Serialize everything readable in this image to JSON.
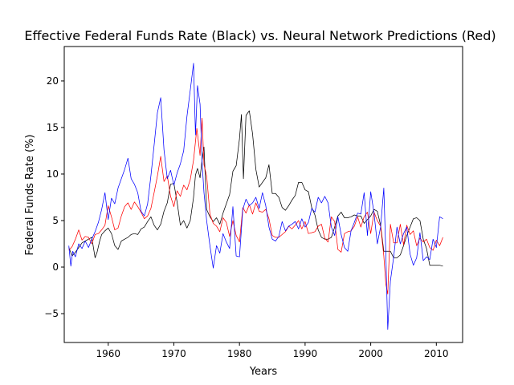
{
  "chart_data": {
    "type": "line",
    "title": "Effective Federal Funds Rate (Black) vs. Neural Network Predictions (Red)",
    "xlabel": "Years",
    "ylabel": "Federal Funds Rate (%)",
    "xlim": [
      1953.3,
      2014.0
    ],
    "ylim": [
      -8.1,
      23.7
    ],
    "xticks": [
      1960,
      1970,
      1980,
      1990,
      2000,
      2010
    ],
    "yticks": [
      -5,
      0,
      5,
      10,
      15,
      20
    ],
    "ytick_labels": [
      "−5",
      "0",
      "5",
      "10",
      "15",
      "20"
    ],
    "grid": false,
    "series": [
      {
        "color": "#000000",
        "x": [
          1954.0,
          1954.5,
          1955.0,
          1955.5,
          1956.0,
          1956.5,
          1957.0,
          1957.5,
          1958.0,
          1958.3,
          1958.7,
          1959.0,
          1959.5,
          1960.0,
          1960.5,
          1961.0,
          1961.5,
          1962.0,
          1962.5,
          1963.0,
          1963.5,
          1964.0,
          1964.5,
          1965.0,
          1965.5,
          1966.0,
          1966.5,
          1967.0,
          1967.5,
          1968.0,
          1968.5,
          1969.0,
          1969.5,
          1970.0,
          1970.5,
          1971.0,
          1971.5,
          1972.0,
          1972.5,
          1973.0,
          1973.3,
          1973.6,
          1974.0,
          1974.3,
          1974.6,
          1975.0,
          1975.5,
          1976.0,
          1976.5,
          1977.0,
          1977.5,
          1978.0,
          1978.5,
          1979.0,
          1979.5,
          1980.0,
          1980.3,
          1980.6,
          1981.0,
          1981.5,
          1982.0,
          1982.5,
          1983.0,
          1983.5,
          1984.0,
          1984.5,
          1985.0,
          1985.5,
          1986.0,
          1986.5,
          1987.0,
          1987.5,
          1988.0,
          1988.5,
          1989.0,
          1989.5,
          1990.0,
          1990.5,
          1991.0,
          1991.5,
          1992.0,
          1992.5,
          1993.0,
          1993.5,
          1994.0,
          1994.5,
          1995.0,
          1995.5,
          1996.0,
          1996.5,
          1997.0,
          1997.5,
          1998.0,
          1998.5,
          1999.0,
          1999.5,
          2000.0,
          2000.5,
          2001.0,
          2001.5,
          2002.0,
          2002.5,
          2003.0,
          2003.5,
          2004.0,
          2004.5,
          2005.0,
          2005.5,
          2006.0,
          2006.5,
          2007.0,
          2007.5,
          2008.0,
          2008.5,
          2009.0,
          2009.5,
          2010.0,
          2010.5,
          2011.0
        ],
        "y": [
          2.1,
          1.2,
          1.6,
          2.1,
          2.6,
          2.8,
          3.0,
          3.2,
          1.0,
          1.6,
          2.8,
          3.5,
          3.9,
          4.2,
          3.6,
          2.3,
          1.9,
          2.8,
          3.0,
          3.2,
          3.5,
          3.6,
          3.5,
          4.1,
          4.3,
          4.9,
          5.4,
          4.5,
          4.0,
          4.6,
          6.0,
          6.9,
          8.9,
          9.0,
          7.0,
          4.5,
          5.0,
          4.2,
          5.0,
          7.5,
          9.9,
          10.6,
          9.6,
          11.5,
          12.9,
          6.2,
          5.4,
          4.9,
          5.3,
          4.6,
          5.8,
          6.8,
          7.8,
          10.3,
          10.9,
          13.8,
          16.4,
          9.5,
          16.3,
          16.8,
          14.3,
          10.5,
          8.6,
          9.1,
          9.6,
          11.0,
          7.9,
          7.9,
          7.5,
          6.4,
          6.1,
          6.6,
          7.2,
          7.7,
          9.1,
          9.1,
          8.3,
          8.1,
          6.4,
          5.6,
          4.0,
          3.2,
          3.0,
          3.0,
          3.2,
          4.3,
          5.5,
          5.9,
          5.3,
          5.3,
          5.4,
          5.6,
          5.5,
          5.5,
          4.7,
          5.1,
          5.5,
          6.2,
          6.0,
          4.5,
          1.7,
          1.7,
          1.7,
          1.0,
          1.0,
          1.3,
          2.3,
          3.4,
          4.3,
          5.2,
          5.3,
          5.0,
          3.0,
          2.0,
          0.2,
          0.2,
          0.2,
          0.2,
          0.1
        ]
      },
      {
        "color": "#ff0000",
        "x": [
          1954.0,
          1954.5,
          1955.0,
          1955.5,
          1956.0,
          1956.5,
          1957.0,
          1957.5,
          1958.0,
          1958.5,
          1959.0,
          1959.5,
          1960.0,
          1960.5,
          1961.0,
          1961.5,
          1962.0,
          1962.5,
          1963.0,
          1963.5,
          1964.0,
          1964.5,
          1965.0,
          1965.5,
          1966.0,
          1966.5,
          1967.0,
          1967.5,
          1968.0,
          1968.5,
          1969.0,
          1969.5,
          1970.0,
          1970.5,
          1971.0,
          1971.5,
          1972.0,
          1972.5,
          1973.0,
          1973.5,
          1974.0,
          1974.3,
          1974.6,
          1975.0,
          1975.5,
          1976.0,
          1976.5,
          1977.0,
          1977.5,
          1978.0,
          1978.5,
          1979.0,
          1979.5,
          1980.0,
          1980.5,
          1981.0,
          1981.5,
          1982.0,
          1982.5,
          1983.0,
          1983.5,
          1984.0,
          1984.5,
          1985.0,
          1985.5,
          1986.0,
          1986.5,
          1987.0,
          1987.5,
          1988.0,
          1988.5,
          1989.0,
          1989.5,
          1990.0,
          1990.5,
          1991.0,
          1991.5,
          1992.0,
          1992.5,
          1993.0,
          1993.5,
          1994.0,
          1994.5,
          1995.0,
          1995.5,
          1996.0,
          1996.5,
          1997.0,
          1997.5,
          1998.0,
          1998.5,
          1999.0,
          1999.5,
          2000.0,
          2000.5,
          2001.0,
          2001.5,
          2002.0,
          2002.3,
          2002.6,
          2003.0,
          2003.5,
          2004.0,
          2004.5,
          2005.0,
          2005.5,
          2006.0,
          2006.5,
          2007.0,
          2007.5,
          2008.0,
          2008.5,
          2009.0,
          2009.5,
          2010.0,
          2010.5,
          2011.0
        ],
        "y": [
          1.8,
          2.2,
          3.0,
          4.0,
          2.9,
          3.3,
          3.2,
          2.5,
          3.5,
          3.6,
          4.0,
          4.5,
          6.6,
          5.4,
          4.0,
          4.2,
          5.5,
          6.5,
          6.9,
          6.2,
          7.0,
          6.5,
          5.9,
          5.2,
          5.5,
          6.3,
          8.0,
          9.8,
          11.9,
          9.2,
          9.8,
          7.6,
          6.5,
          8.2,
          7.6,
          8.8,
          8.3,
          9.4,
          11.5,
          14.9,
          12.0,
          16.0,
          11.0,
          9.8,
          5.7,
          4.7,
          4.4,
          3.8,
          5.3,
          4.8,
          3.3,
          5.0,
          3.4,
          2.7,
          6.4,
          5.8,
          6.7,
          5.7,
          6.9,
          6.0,
          5.9,
          6.2,
          5.2,
          3.4,
          3.2,
          3.2,
          3.5,
          3.8,
          4.4,
          4.1,
          4.5,
          5.0,
          4.1,
          4.9,
          3.6,
          3.7,
          3.8,
          4.4,
          4.6,
          3.1,
          2.7,
          5.4,
          4.9,
          1.9,
          1.6,
          3.6,
          3.8,
          3.9,
          4.4,
          5.4,
          4.3,
          5.4,
          5.9,
          3.6,
          5.9,
          5.0,
          4.4,
          1.2,
          -1.8,
          -2.9,
          4.6,
          2.6,
          2.6,
          4.6,
          2.4,
          4.5,
          3.5,
          3.9,
          2.3,
          3.1,
          2.7,
          3.0,
          2.1,
          1.8,
          2.9,
          2.3,
          3.2
        ]
      },
      {
        "color": "#0000ff",
        "x": [
          1954.0,
          1954.3,
          1954.6,
          1955.0,
          1955.5,
          1956.0,
          1956.5,
          1957.0,
          1957.5,
          1958.0,
          1958.5,
          1959.0,
          1959.5,
          1960.0,
          1960.5,
          1961.0,
          1961.5,
          1962.0,
          1962.5,
          1963.0,
          1963.5,
          1964.0,
          1964.5,
          1965.0,
          1965.5,
          1966.0,
          1966.5,
          1967.0,
          1967.5,
          1968.0,
          1968.5,
          1969.0,
          1969.5,
          1970.0,
          1970.5,
          1971.0,
          1971.5,
          1972.0,
          1972.5,
          1973.0,
          1973.3,
          1973.6,
          1974.0,
          1974.3,
          1974.6,
          1975.0,
          1975.5,
          1976.0,
          1976.5,
          1977.0,
          1977.5,
          1978.0,
          1978.5,
          1979.0,
          1979.5,
          1980.0,
          1980.5,
          1981.0,
          1981.5,
          1982.0,
          1982.5,
          1983.0,
          1983.5,
          1984.0,
          1984.5,
          1985.0,
          1985.5,
          1986.0,
          1986.5,
          1987.0,
          1987.5,
          1988.0,
          1988.5,
          1989.0,
          1989.5,
          1990.0,
          1990.5,
          1991.0,
          1991.5,
          1992.0,
          1992.5,
          1993.0,
          1993.5,
          1994.0,
          1994.5,
          1995.0,
          1995.5,
          1996.0,
          1996.5,
          1997.0,
          1997.5,
          1998.0,
          1998.5,
          1999.0,
          1999.5,
          2000.0,
          2000.5,
          2001.0,
          2001.5,
          2002.0,
          2002.3,
          2002.6,
          2003.0,
          2003.5,
          2004.0,
          2004.5,
          2005.0,
          2005.5,
          2006.0,
          2006.5,
          2007.0,
          2007.5,
          2008.0,
          2008.5,
          2009.0,
          2009.5,
          2010.0,
          2010.5,
          2011.0
        ],
        "y": [
          2.3,
          0.1,
          1.7,
          1.1,
          2.5,
          2.0,
          2.8,
          2.1,
          3.0,
          3.8,
          4.8,
          6.2,
          8.0,
          5.1,
          7.4,
          6.8,
          8.5,
          9.5,
          10.5,
          11.7,
          9.5,
          8.9,
          8.0,
          6.0,
          5.5,
          6.8,
          9.8,
          13.1,
          16.6,
          18.2,
          12.6,
          9.5,
          10.4,
          8.8,
          10.1,
          11.1,
          12.5,
          16.2,
          19.0,
          21.9,
          14.2,
          19.5,
          17.5,
          11.3,
          8.0,
          5.0,
          2.3,
          -0.1,
          2.3,
          1.5,
          3.6,
          2.7,
          2.0,
          6.5,
          1.2,
          1.1,
          6.2,
          7.3,
          6.6,
          6.9,
          7.5,
          6.3,
          8.0,
          6.6,
          4.3,
          3.0,
          2.8,
          3.3,
          4.9,
          3.9,
          4.4,
          4.6,
          4.9,
          4.1,
          5.2,
          4.3,
          4.8,
          6.3,
          5.9,
          7.5,
          6.9,
          7.6,
          6.9,
          4.3,
          3.4,
          5.4,
          3.5,
          2.1,
          1.7,
          3.9,
          4.8,
          5.8,
          5.7,
          8.0,
          3.4,
          8.1,
          5.8,
          2.5,
          4.3,
          8.5,
          1.5,
          -6.7,
          -1.5,
          1.1,
          4.3,
          2.5,
          3.6,
          4.3,
          1.4,
          0.2,
          1.0,
          3.7,
          0.7,
          1.1,
          0.8,
          3.0,
          2.1,
          5.4,
          5.2
        ]
      }
    ]
  }
}
